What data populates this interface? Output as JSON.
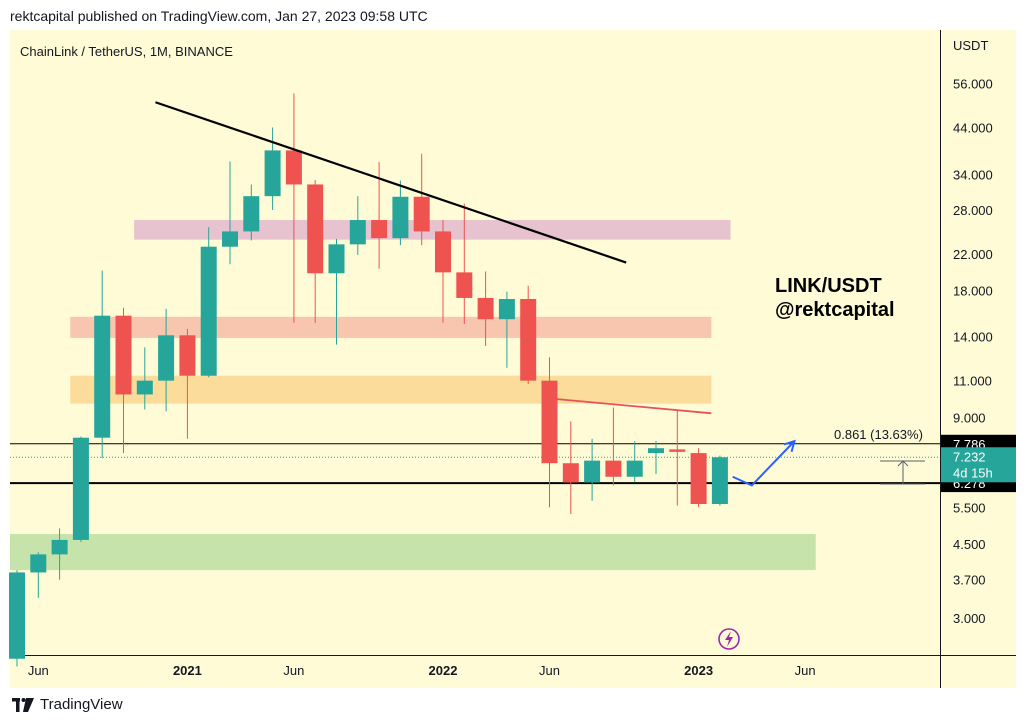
{
  "header": {
    "published": "rektcapital published on TradingView.com, Jan 27, 2023 09:58 UTC"
  },
  "chart_data": {
    "type": "candlestick",
    "title": "ChainLink / TetherUS, 1M, BINANCE",
    "y_axis_label": "USDT",
    "y_scale": "log",
    "ylim": [
      2.45,
      75
    ],
    "y_ticks": [
      "56.000",
      "44.000",
      "34.000",
      "28.000",
      "22.000",
      "18.000",
      "14.000",
      "11.000",
      "9.000",
      "5.500",
      "4.500",
      "3.700",
      "3.000"
    ],
    "x_ticks": [
      {
        "label": "Jun",
        "index": 1,
        "bold": false
      },
      {
        "label": "2021",
        "index": 8,
        "bold": true
      },
      {
        "label": "Jun",
        "index": 13,
        "bold": false
      },
      {
        "label": "2022",
        "index": 20,
        "bold": true
      },
      {
        "label": "Jun",
        "index": 25,
        "bold": false
      },
      {
        "label": "2023",
        "index": 32,
        "bold": true
      },
      {
        "label": "Jun",
        "index": 37,
        "bold": false
      }
    ],
    "candles": [
      {
        "date": "2020-04",
        "o": 2.4,
        "h": 3.9,
        "l": 2.3,
        "c": 3.85
      },
      {
        "date": "2020-05",
        "o": 3.85,
        "h": 4.3,
        "l": 3.35,
        "c": 4.25
      },
      {
        "date": "2020-06",
        "o": 4.25,
        "h": 4.9,
        "l": 3.7,
        "c": 4.6
      },
      {
        "date": "2020-07",
        "o": 4.6,
        "h": 8.1,
        "l": 4.55,
        "c": 8.05
      },
      {
        "date": "2020-08",
        "o": 8.05,
        "h": 20.1,
        "l": 7.2,
        "c": 15.7
      },
      {
        "date": "2020-09",
        "o": 15.7,
        "h": 16.4,
        "l": 7.4,
        "c": 10.2
      },
      {
        "date": "2020-10",
        "o": 10.2,
        "h": 13.2,
        "l": 9.4,
        "c": 11.0
      },
      {
        "date": "2020-11",
        "o": 11.0,
        "h": 16.3,
        "l": 9.3,
        "c": 14.1
      },
      {
        "date": "2020-12",
        "o": 14.1,
        "h": 14.6,
        "l": 8.0,
        "c": 11.3
      },
      {
        "date": "2021-01",
        "o": 11.3,
        "h": 25.5,
        "l": 11.2,
        "c": 22.9
      },
      {
        "date": "2021-02",
        "o": 22.9,
        "h": 36.5,
        "l": 20.8,
        "c": 24.9
      },
      {
        "date": "2021-03",
        "o": 24.9,
        "h": 32.2,
        "l": 23.7,
        "c": 30.2
      },
      {
        "date": "2021-04",
        "o": 30.2,
        "h": 44.0,
        "l": 28.0,
        "c": 38.8
      },
      {
        "date": "2021-05",
        "o": 38.8,
        "h": 53.0,
        "l": 15.1,
        "c": 32.2
      },
      {
        "date": "2021-06",
        "o": 32.2,
        "h": 33.0,
        "l": 15.1,
        "c": 19.8
      },
      {
        "date": "2021-07",
        "o": 19.8,
        "h": 23.9,
        "l": 13.4,
        "c": 23.2
      },
      {
        "date": "2021-08",
        "o": 23.2,
        "h": 30.2,
        "l": 21.9,
        "c": 26.5
      },
      {
        "date": "2021-09",
        "o": 26.5,
        "h": 36.4,
        "l": 20.3,
        "c": 24.0
      },
      {
        "date": "2021-10",
        "o": 24.0,
        "h": 32.9,
        "l": 23.1,
        "c": 30.1
      },
      {
        "date": "2021-11",
        "o": 30.1,
        "h": 38.1,
        "l": 23.1,
        "c": 24.9
      },
      {
        "date": "2021-12",
        "o": 24.9,
        "h": 26.5,
        "l": 15.1,
        "c": 19.9
      },
      {
        "date": "2022-01",
        "o": 19.9,
        "h": 29.0,
        "l": 15.0,
        "c": 17.3
      },
      {
        "date": "2022-02",
        "o": 17.3,
        "h": 20.0,
        "l": 13.3,
        "c": 15.4
      },
      {
        "date": "2022-03",
        "o": 15.4,
        "h": 17.9,
        "l": 11.8,
        "c": 17.2
      },
      {
        "date": "2022-04",
        "o": 17.2,
        "h": 18.5,
        "l": 10.8,
        "c": 11.0
      },
      {
        "date": "2022-05",
        "o": 11.0,
        "h": 12.5,
        "l": 5.5,
        "c": 7.0
      },
      {
        "date": "2022-06",
        "o": 7.0,
        "h": 8.8,
        "l": 5.3,
        "c": 6.3
      },
      {
        "date": "2022-07",
        "o": 6.3,
        "h": 8.0,
        "l": 5.7,
        "c": 7.1
      },
      {
        "date": "2022-08",
        "o": 7.1,
        "h": 9.5,
        "l": 6.2,
        "c": 6.5
      },
      {
        "date": "2022-09",
        "o": 6.5,
        "h": 7.9,
        "l": 6.3,
        "c": 7.1
      },
      {
        "date": "2022-10",
        "o": 7.4,
        "h": 7.9,
        "l": 6.6,
        "c": 7.6
      },
      {
        "date": "2022-11",
        "o": 7.55,
        "h": 9.35,
        "l": 5.55,
        "c": 7.45
      },
      {
        "date": "2022-12",
        "o": 7.4,
        "h": 7.6,
        "l": 5.5,
        "c": 5.6
      },
      {
        "date": "2023-01",
        "o": 5.6,
        "h": 7.3,
        "l": 5.55,
        "c": 7.232
      }
    ],
    "zones": [
      {
        "name": "pink",
        "y_low": 23.8,
        "y_high": 26.5,
        "x_from": 5.5,
        "x_to": 33.5,
        "color": "#e6c3cf"
      },
      {
        "name": "salmon",
        "y_low": 13.9,
        "y_high": 15.6,
        "x_from": 2.5,
        "x_to": 32.6,
        "color": "#f8c5ae"
      },
      {
        "name": "orange",
        "y_low": 9.7,
        "y_high": 11.3,
        "x_from": 2.5,
        "x_to": 32.6,
        "color": "#fbdc9a"
      },
      {
        "name": "green",
        "y_low": 3.9,
        "y_high": 4.75,
        "x_from": -0.5,
        "x_to": 37.5,
        "color": "#c5e3aa"
      }
    ],
    "trendlines": [
      {
        "name": "descending-resistance",
        "color": "#000000",
        "from": [
          6.5,
          50.5
        ],
        "to": [
          28.6,
          21.0
        ]
      },
      {
        "name": "lower-high-resistance",
        "color": "#e8535a",
        "from": [
          25.3,
          9.95
        ],
        "to": [
          32.6,
          9.2
        ]
      }
    ],
    "levels": [
      {
        "name": "upper-level",
        "value": "7.786",
        "price": 7.786,
        "style": "thin"
      },
      {
        "name": "lower-level",
        "value": "6.278",
        "price": 6.278,
        "style": "thick"
      }
    ],
    "current_price": {
      "value": "7.232",
      "countdown": "4d 15h",
      "price": 7.232
    },
    "measure_label": "0.861 (13.63%)",
    "projection": [
      [
        33.6,
        6.5
      ],
      [
        34.5,
        6.2
      ],
      [
        36.5,
        7.9
      ]
    ],
    "annotation": {
      "line1": "LINK/USDT",
      "line2": "@rektcapital"
    },
    "colors": {
      "up": "#26a69a",
      "down": "#ef5350",
      "background": "#fffbd6"
    }
  },
  "footer": {
    "brand": "TradingView"
  }
}
